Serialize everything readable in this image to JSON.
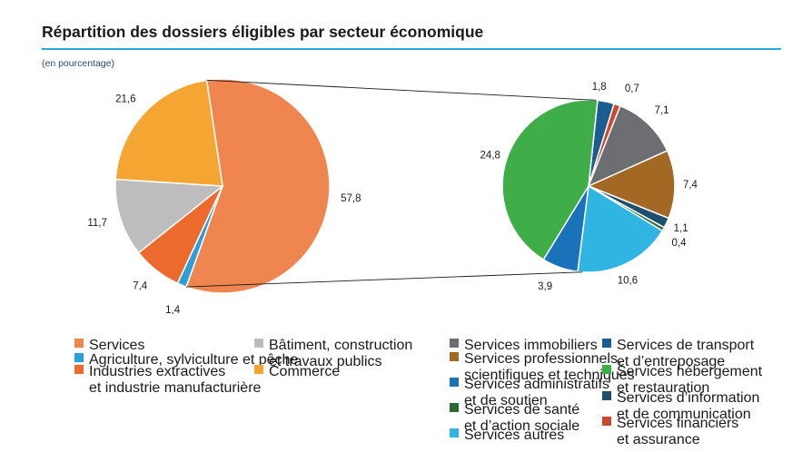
{
  "title": "Répartition des dossiers éligibles par secteur économique",
  "unit_note": "(en pourcentage)",
  "chart_data": [
    {
      "type": "pie",
      "slices": [
        {
          "key": "services",
          "name": "Services",
          "value": 57.8,
          "label": "57,8",
          "color": "#f0864f"
        },
        {
          "key": "agriculture",
          "name": "Agriculture, sylviculture et pêche",
          "value": 1.4,
          "label": "1,4",
          "color": "#2a9fd8"
        },
        {
          "key": "industries",
          "name": "Industries extractives\net industrie manufacturière",
          "value": 7.4,
          "label": "7,4",
          "color": "#ed6a2f"
        },
        {
          "key": "batiment",
          "name": "Bâtiment, construction\net travaux publics",
          "value": 11.7,
          "label": "11,7",
          "color": "#bdbdbd"
        },
        {
          "key": "commerce",
          "name": "Commerce",
          "value": 21.6,
          "label": "21,6",
          "color": "#f5a531"
        }
      ]
    },
    {
      "type": "pie",
      "slices": [
        {
          "key": "transport",
          "name": "Services de transport\net d’entreposage",
          "value": 1.8,
          "label": "1,8",
          "color": "#1c5d91"
        },
        {
          "key": "financiers",
          "name": "Services financiers\net assurance",
          "value": 0.7,
          "label": "0,7",
          "color": "#c94a2c"
        },
        {
          "key": "immobiliers",
          "name": "Services immobiliers",
          "value": 7.1,
          "label": "7,1",
          "color": "#6d6e71"
        },
        {
          "key": "professionnels",
          "name": "Services professionnels,\nscientifiques et techniques",
          "value": 7.4,
          "label": "7,4",
          "color": "#a26824"
        },
        {
          "key": "information",
          "name": "Services d’information\net de communication",
          "value": 1.1,
          "label": "1,1",
          "color": "#1d4f6e"
        },
        {
          "key": "sante",
          "name": "Services de santé\net d’action sociale",
          "value": 0.4,
          "label": "0,4",
          "color": "#2a6b34"
        },
        {
          "key": "autres",
          "name": "Services autres",
          "value": 10.6,
          "label": "10,6",
          "color": "#30b4e2"
        },
        {
          "key": "administratifs",
          "name": "Services administratifs\net de soutien",
          "value": 3.9,
          "label": "3,9",
          "color": "#1a72b8"
        },
        {
          "key": "hebergement",
          "name": "Services hébergement\net restauration",
          "value": 24.8,
          "label": "24,8",
          "color": "#3fae49"
        }
      ]
    }
  ],
  "legend_groups": [
    [
      "services",
      "agriculture",
      "industries"
    ],
    [
      "batiment",
      "commerce"
    ],
    [
      "immobiliers",
      "professionnels",
      "administratifs",
      "sante",
      "autres"
    ],
    [
      "transport",
      "hebergement",
      "information",
      "financiers"
    ]
  ]
}
